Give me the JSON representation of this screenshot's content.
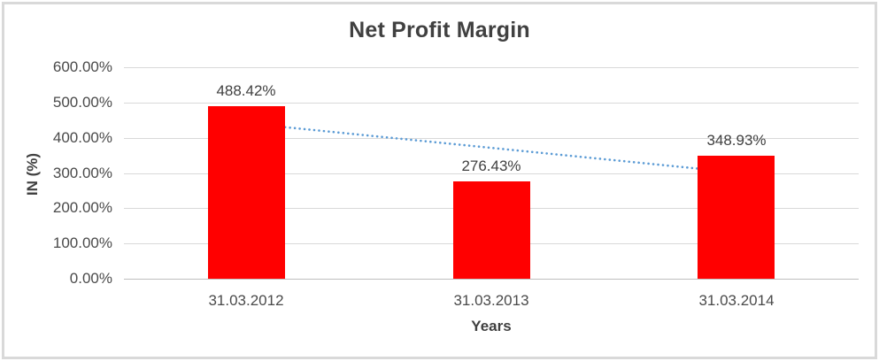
{
  "chart_data": {
    "type": "bar",
    "title": "Net Profit Margin",
    "xlabel": "Years",
    "ylabel": "IN (%)",
    "categories": [
      "31.03.2012",
      "31.03.2013",
      "31.03.2014"
    ],
    "values": [
      488.42,
      276.43,
      348.93
    ],
    "data_labels": [
      "488.42%",
      "276.43%",
      "348.93%"
    ],
    "y_tick_values": [
      0,
      100,
      200,
      300,
      400,
      500,
      600
    ],
    "y_tick_labels": [
      "0.00%",
      "100.00%",
      "200.00%",
      "300.00%",
      "400.00%",
      "500.00%",
      "600.00%"
    ],
    "ylim": [
      0,
      600
    ],
    "grid": "horizontal",
    "legend": "none",
    "colors": {
      "bar": "#ff0000",
      "trendline": "#5b9bd5",
      "gridline": "#d9d9d9",
      "axis_line": "#bfbfbf",
      "text": "#404040",
      "frame_border": "#d9d9d9"
    },
    "trendline": {
      "type": "linear",
      "style": "dotted",
      "start_value": 441.0,
      "end_value": 301.5
    }
  }
}
